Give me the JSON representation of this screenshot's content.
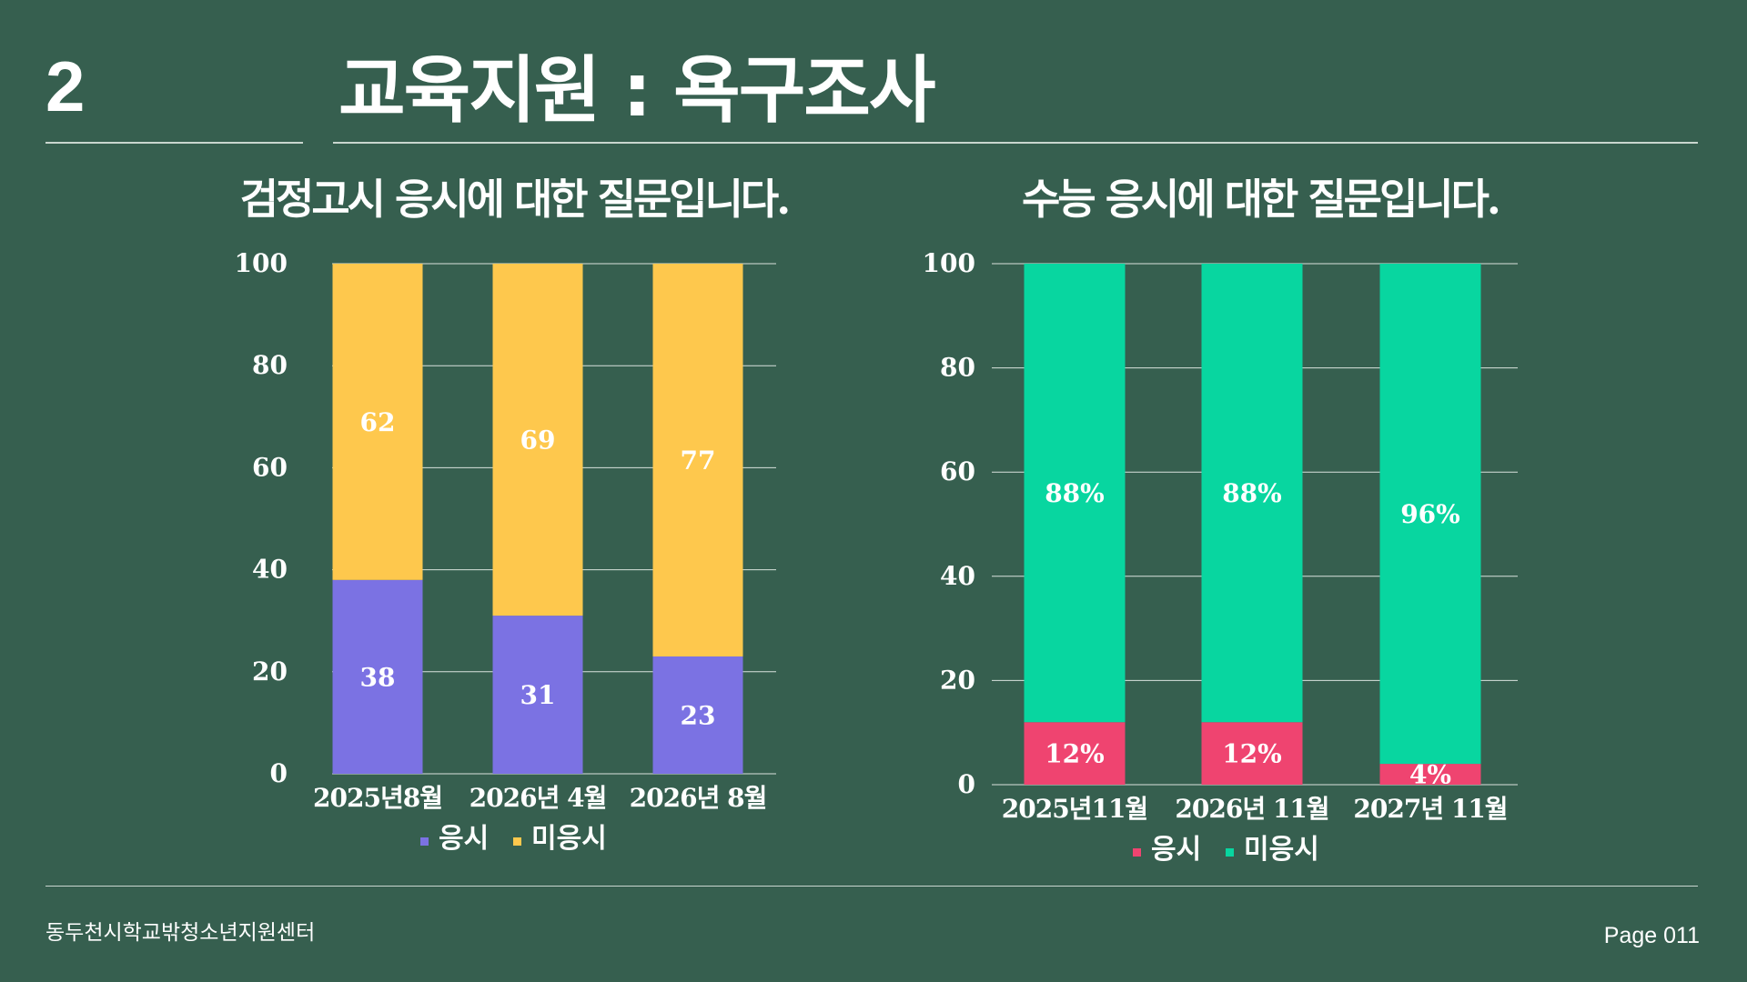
{
  "slide": {
    "number": "2",
    "title": "교육지원 : 욕구조사",
    "footer_org": "동두천시학교밖청소년지원센터",
    "page": "Page 011"
  },
  "colors": {
    "background": "#365f4f",
    "apply": "#7b72e3",
    "not_apply_ged": "#fec84d",
    "apply_csat": "#ef4470",
    "not_apply_csat": "#08d6a0"
  },
  "chart_data": [
    {
      "type": "bar",
      "stacked": true,
      "title": "검정고시 응시에 대한 질문입니다.",
      "categories": [
        "2025년8월",
        "2026년 4월",
        "2026년 8월"
      ],
      "series": [
        {
          "name": "응시",
          "values": [
            38,
            31,
            23
          ],
          "labels": [
            "38",
            "31",
            "23"
          ],
          "color": "#7b72e3"
        },
        {
          "name": "미응시",
          "values": [
            62,
            69,
            77
          ],
          "labels": [
            "62",
            "69",
            "77"
          ],
          "color": "#fec84d"
        }
      ],
      "ylim": [
        0,
        100
      ],
      "yticks": [
        "0",
        "20",
        "40",
        "60",
        "80",
        "100"
      ],
      "grid": true,
      "legend": "bottom"
    },
    {
      "type": "bar",
      "stacked": true,
      "title": "수능 응시에 대한 질문입니다.",
      "categories": [
        "2025년11월",
        "2026년 11월",
        "2027년 11월"
      ],
      "series": [
        {
          "name": "응시",
          "values": [
            12,
            12,
            4
          ],
          "labels": [
            "12%",
            "12%",
            "4%"
          ],
          "color": "#ef4470"
        },
        {
          "name": "미응시",
          "values": [
            88,
            88,
            96
          ],
          "labels": [
            "88%",
            "88%",
            "96%"
          ],
          "color": "#08d6a0"
        }
      ],
      "ylim": [
        0,
        100
      ],
      "yticks": [
        "0",
        "20",
        "40",
        "60",
        "80",
        "100"
      ],
      "grid": true,
      "legend": "bottom"
    }
  ]
}
